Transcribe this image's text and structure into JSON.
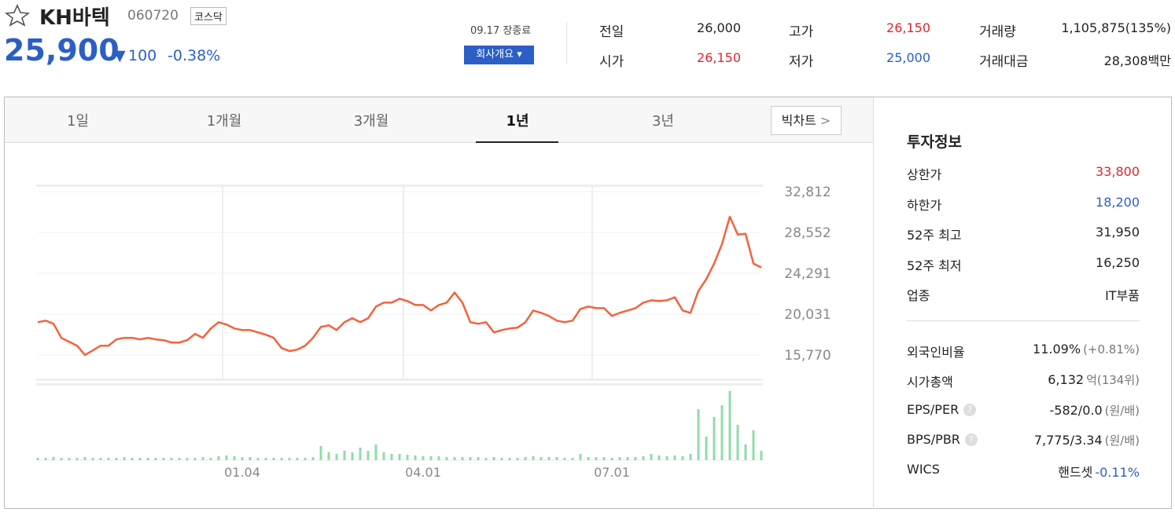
{
  "header": {
    "name": "KH바텍",
    "code": "060720",
    "market": "코스닥",
    "price": "25,900",
    "change": "100",
    "change_pct": "-0.38%",
    "time": "09.17 장종료",
    "company_button": "회사개요"
  },
  "quote": [
    [
      {
        "label": "전일",
        "value": "26,000"
      },
      {
        "label": "고가",
        "value": "26,150"
      },
      {
        "label": "거래량",
        "value": "1,105,875(135%)"
      }
    ],
    [
      {
        "label": "시가",
        "value": "26,150"
      },
      {
        "label": "저가",
        "value": "25,000"
      },
      {
        "label": "거래대금",
        "value": "28,308백만"
      }
    ]
  ],
  "tabs": [
    "1일",
    "1개월",
    "3개월",
    "1년",
    "3년"
  ],
  "big_chart": "빅차트",
  "chart_data": [
    {
      "type": "line",
      "color": "#f4623a",
      "grid": true,
      "categories": [
        null,
        null,
        null,
        null,
        null,
        null,
        null,
        null,
        null,
        null,
        null,
        null,
        null,
        null,
        null,
        null,
        null,
        null,
        null,
        null,
        null,
        null,
        null,
        null,
        null,
        null,
        "01.04",
        null,
        null,
        null,
        null,
        null,
        null,
        null,
        null,
        null,
        null,
        null,
        null,
        null,
        null,
        null,
        null,
        null,
        null,
        null,
        null,
        null,
        null,
        "04.01",
        null,
        null,
        null,
        null,
        null,
        null,
        null,
        null,
        null,
        null,
        null,
        null,
        null,
        null,
        null,
        null,
        null,
        null,
        null,
        null,
        null,
        null,
        null,
        "07.01",
        null,
        null,
        null,
        null,
        null,
        null,
        null,
        null,
        null,
        null,
        null,
        null,
        null,
        null,
        null,
        null,
        null,
        null,
        null
      ],
      "values": [
        19193,
        19356,
        19030,
        17563,
        17156,
        16748,
        15770,
        16259,
        16748,
        16748,
        17400,
        17563,
        17563,
        17400,
        17563,
        17400,
        17319,
        17074,
        17074,
        17319,
        17971,
        17563,
        18541,
        19193,
        18949,
        18541,
        18378,
        18378,
        18134,
        17889,
        17563,
        16504,
        16178,
        16341,
        16748,
        17563,
        18704,
        18867,
        18378,
        19193,
        19601,
        19193,
        19601,
        20823,
        21231,
        21231,
        21638,
        21394,
        20986,
        20986,
        20416,
        20986,
        21231,
        22290,
        21231,
        19193,
        19030,
        19193,
        18134,
        18378,
        18541,
        18623,
        19193,
        20416,
        20171,
        19845,
        19356,
        19193,
        19356,
        20579,
        20823,
        20660,
        20660,
        19845,
        20171,
        20416,
        20660,
        21231,
        21475,
        21394,
        21475,
        21801,
        20416,
        20171,
        22453,
        23676,
        25306,
        27343,
        30196,
        28321,
        28403,
        25306,
        24898
      ],
      "ylim": [
        13325,
        33300
      ],
      "yticks": [
        {
          "value": 15770,
          "label": "15,770"
        },
        {
          "value": 20031,
          "label": "20,031"
        },
        {
          "value": 24291,
          "label": "24,291"
        },
        {
          "value": 28552,
          "label": "28,552"
        },
        {
          "value": 32812,
          "label": "32,812"
        }
      ]
    },
    {
      "type": "bar",
      "color": "#8fdca8",
      "ylim": [
        0,
        8100000
      ],
      "values": [
        270000,
        270000,
        360000,
        270000,
        270000,
        270000,
        360000,
        270000,
        270000,
        270000,
        270000,
        360000,
        270000,
        270000,
        270000,
        270000,
        270000,
        270000,
        270000,
        270000,
        270000,
        360000,
        270000,
        450000,
        540000,
        450000,
        360000,
        360000,
        270000,
        270000,
        270000,
        270000,
        270000,
        270000,
        270000,
        360000,
        1620000,
        900000,
        720000,
        1080000,
        900000,
        1440000,
        1080000,
        1800000,
        900000,
        720000,
        720000,
        630000,
        540000,
        450000,
        450000,
        450000,
        360000,
        360000,
        360000,
        360000,
        360000,
        270000,
        360000,
        270000,
        270000,
        270000,
        360000,
        450000,
        360000,
        360000,
        360000,
        270000,
        270000,
        720000,
        360000,
        360000,
        360000,
        270000,
        360000,
        360000,
        360000,
        450000,
        720000,
        540000,
        450000,
        540000,
        450000,
        720000,
        5850000,
        2700000,
        4950000,
        6300000,
        7920000,
        4050000,
        1800000,
        3420000,
        1080000
      ]
    }
  ],
  "invest": {
    "title": "투자정보",
    "rows": [
      {
        "label": "상한가",
        "value": "33,800"
      },
      {
        "label": "하한가",
        "value": "18,200"
      },
      {
        "label": "52주 최고",
        "value": "31,950"
      },
      {
        "label": "52주 최저",
        "value": "16,250"
      },
      {
        "label": "업종",
        "value": "IT부품"
      }
    ],
    "rows2": [
      {
        "label": "외국인비율",
        "value": "11.09%",
        "extra": "(+0.81%)"
      },
      {
        "label": "시가총액",
        "value": "6,132",
        "extra": "억(134위)"
      },
      {
        "label": "EPS/PER",
        "value": "-582/0.0",
        "extra": "(원/배)"
      },
      {
        "label": "BPS/PBR",
        "value": "7,775/3.34",
        "extra": "(원/배)"
      },
      {
        "label": "WICS",
        "value": "핸드셋",
        "extra": "-0.11%"
      }
    ]
  }
}
